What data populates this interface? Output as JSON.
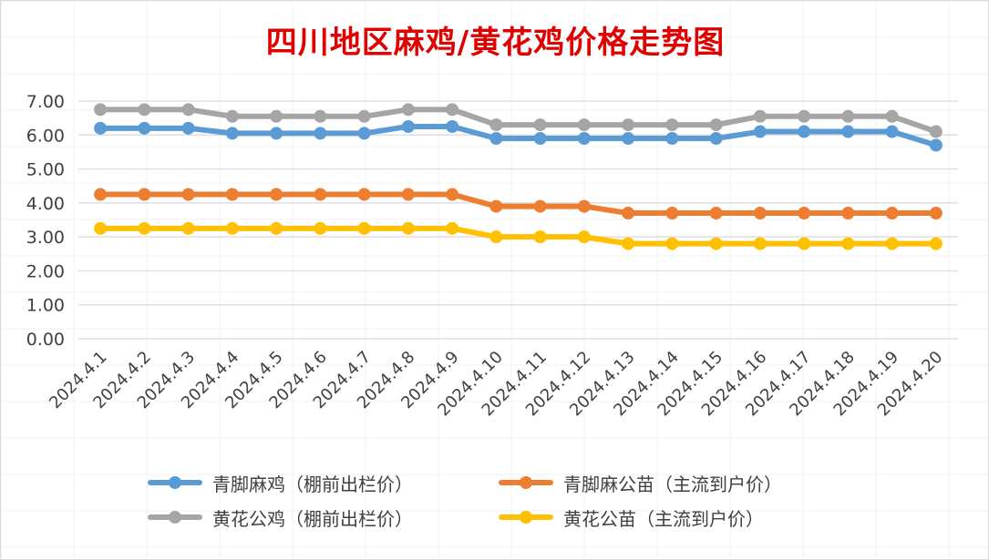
{
  "title": "四川地区麻鸡/黄花鸡价格走势图",
  "chart_data": {
    "type": "line",
    "title": "四川地区麻鸡/黄花鸡价格走势图",
    "xlabel": "",
    "ylabel": "",
    "ylim": [
      0,
      7
    ],
    "y_ticks": [
      "0.00",
      "1.00",
      "2.00",
      "3.00",
      "4.00",
      "5.00",
      "6.00",
      "7.00"
    ],
    "grid": true,
    "legend_position": "bottom",
    "categories": [
      "2024.4.1",
      "2024.4.2",
      "2024.4.3",
      "2024.4.4",
      "2024.4.5",
      "2024.4.6",
      "2024.4.7",
      "2024.4.8",
      "2024.4.9",
      "2024.4.10",
      "2024.4.11",
      "2024.4.12",
      "2024.4.13",
      "2024.4.14",
      "2024.4.15",
      "2024.4.16",
      "2024.4.17",
      "2024.4.18",
      "2024.4.19",
      "2024.4.20"
    ],
    "series": [
      {
        "name": "青脚麻鸡（棚前出栏价）",
        "color": "#5b9bd5",
        "values": [
          6.2,
          6.2,
          6.2,
          6.05,
          6.05,
          6.05,
          6.05,
          6.25,
          6.25,
          5.9,
          5.9,
          5.9,
          5.9,
          5.9,
          5.9,
          6.1,
          6.1,
          6.1,
          6.1,
          5.7
        ]
      },
      {
        "name": "青脚麻公苗（主流到户价）",
        "color": "#ed7d31",
        "values": [
          4.25,
          4.25,
          4.25,
          4.25,
          4.25,
          4.25,
          4.25,
          4.25,
          4.25,
          3.9,
          3.9,
          3.9,
          3.7,
          3.7,
          3.7,
          3.7,
          3.7,
          3.7,
          3.7,
          3.7
        ]
      },
      {
        "name": "黄花公鸡（棚前出栏价）",
        "color": "#a5a5a5",
        "values": [
          6.75,
          6.75,
          6.75,
          6.55,
          6.55,
          6.55,
          6.55,
          6.75,
          6.75,
          6.3,
          6.3,
          6.3,
          6.3,
          6.3,
          6.3,
          6.55,
          6.55,
          6.55,
          6.55,
          6.1
        ]
      },
      {
        "name": "黄花公苗（主流到户价）",
        "color": "#ffc000",
        "values": [
          3.25,
          3.25,
          3.25,
          3.25,
          3.25,
          3.25,
          3.25,
          3.25,
          3.25,
          3.0,
          3.0,
          3.0,
          2.8,
          2.8,
          2.8,
          2.8,
          2.8,
          2.8,
          2.8,
          2.8
        ]
      }
    ]
  }
}
